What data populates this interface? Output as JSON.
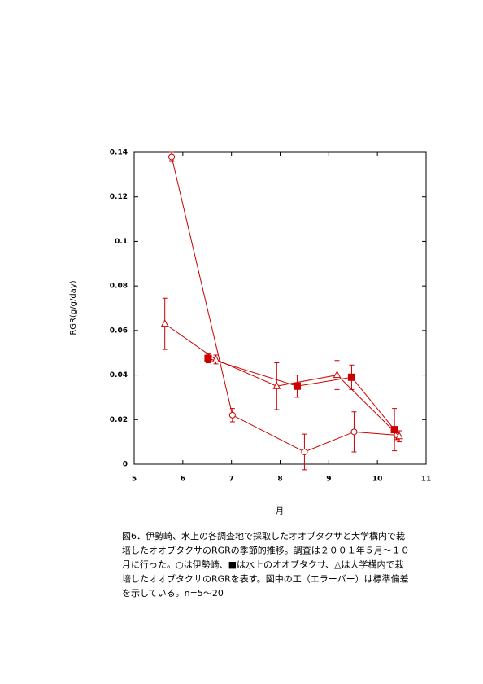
{
  "chart_data": {
    "type": "line",
    "x_label": "月",
    "y_label": "RGR(g/g/day)",
    "xlim": [
      5,
      11
    ],
    "xticks": [
      5,
      6,
      7,
      8,
      9,
      10,
      11
    ],
    "ylim": [
      0,
      0.14
    ],
    "yticks": [
      0,
      0.02,
      0.04,
      0.06,
      0.08,
      0.1,
      0.12,
      0.14
    ],
    "series": [
      {
        "color": "#cc0000",
        "marker": "open-circle",
        "x": [
          5.77,
          7.02,
          8.5,
          9.52,
          10.4
        ],
        "values": [
          0.138,
          0.022,
          0.0055,
          0.0145,
          0.013
        ],
        "errors": [
          0.002,
          0.003,
          0.008,
          0.009,
          0.002
        ]
      },
      {
        "color": "#cc0000",
        "marker": "filled-square",
        "x": [
          6.52,
          8.35,
          9.47,
          10.35
        ],
        "values": [
          0.0475,
          0.035,
          0.039,
          0.0155
        ],
        "errors": [
          0.002,
          0.005,
          0.0055,
          0.0095
        ]
      },
      {
        "color": "#cc0000",
        "marker": "open-triangle",
        "x": [
          5.63,
          6.68,
          7.93,
          9.17,
          10.45
        ],
        "values": [
          0.063,
          0.047,
          0.035,
          0.04,
          0.0125
        ],
        "errors": [
          0.0115,
          0.002,
          0.0105,
          0.0065,
          0.0025
        ]
      }
    ]
  },
  "caption": [
    "図6．伊勢崎、水上の各調査地で採取したオオブタクサと大学構内で栽",
    "培したオオブタクサのRGRの季節的推移。調査は２００１年５月～１０",
    "月に行った。○は伊勢崎、■は水上のオオブタクサ、△は大学構内で栽",
    "培したオオブタクサのRGRを表す。図中の工（エラーバー）は標準偏差",
    "を示している。n=5～20"
  ]
}
